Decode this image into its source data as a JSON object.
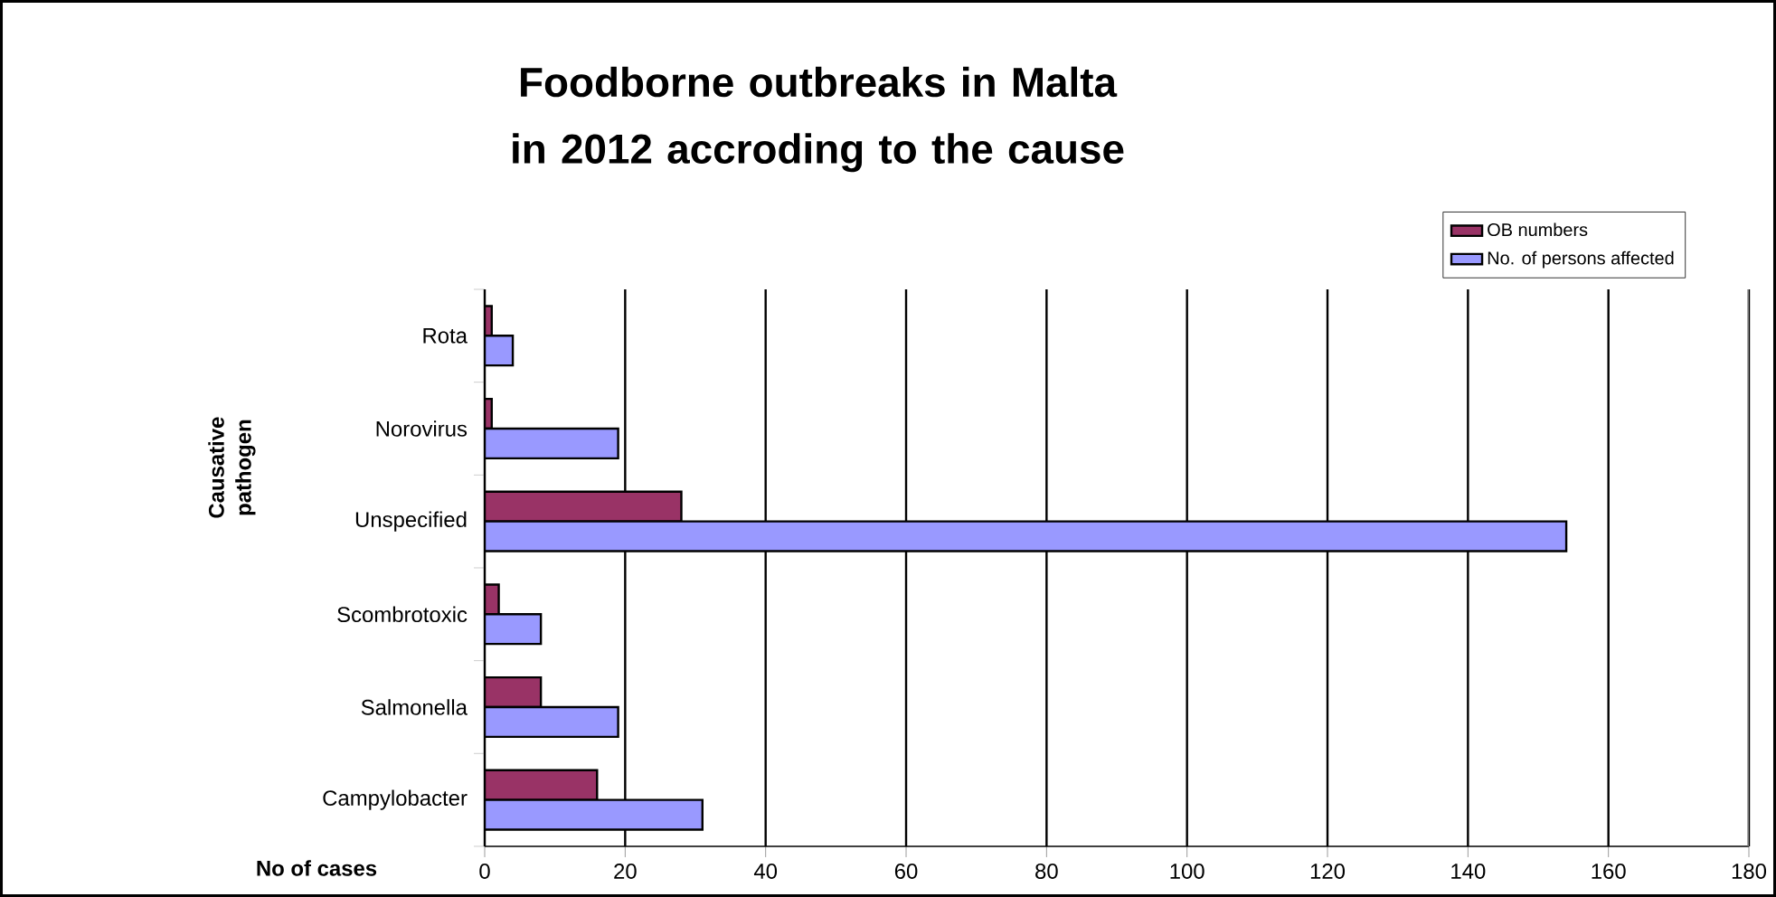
{
  "chart_data": {
    "type": "bar",
    "orientation": "horizontal",
    "title": "Foodborne outbreaks in Malta in 2012 accroding to the cause",
    "xlabel": "No of cases",
    "ylabel": "Causative pathogen",
    "categories": [
      "Rota",
      "Norovirus",
      "Unspecified",
      "Scombrotoxic",
      "Salmonella",
      "Campylobacter"
    ],
    "series": [
      {
        "name": "OB numbers",
        "color": "#993366",
        "values": [
          1,
          1,
          28,
          2,
          8,
          16
        ]
      },
      {
        "name": "No. of persons affected",
        "color": "#9999ff",
        "values": [
          4,
          19,
          154,
          8,
          19,
          31
        ]
      }
    ],
    "xlim": [
      0,
      180
    ],
    "xticks": [
      0,
      20,
      40,
      60,
      80,
      100,
      120,
      140,
      160,
      180
    ],
    "grid": "x",
    "legend": "top right"
  }
}
